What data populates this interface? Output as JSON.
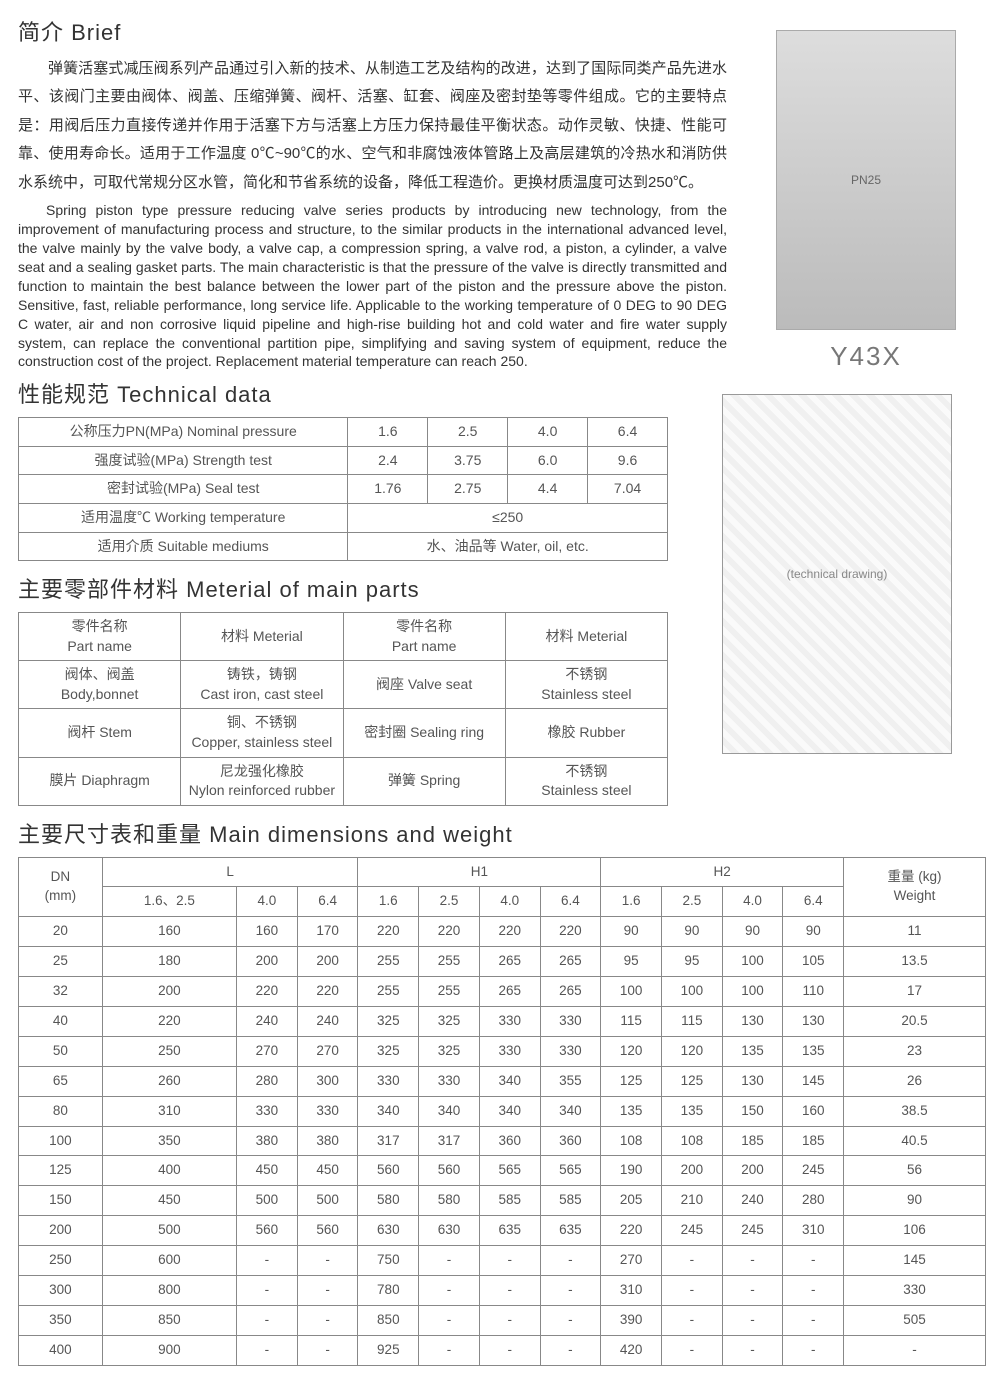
{
  "brief": {
    "heading": "简介 Brief",
    "ch": "弹簧活塞式减压阀系列产品通过引入新的技术、从制造工艺及结构的改进，达到了国际同类产品先进水平、该阀门主要由阀体、阀盖、压缩弹簧、阀杆、活塞、缸套、阀座及密封垫等零件组成。它的主要特点是：用阀后压力直接传递并作用于活塞下方与活塞上方压力保持最佳平衡状态。动作灵敏、快捷、性能可靠、使用寿命长。适用于工作温度 0℃~90℃的水、空气和非腐蚀液体管路上及高层建筑的冷热水和消防供水系统中，可取代常规分区水管，简化和节省系统的设备，降低工程造价。更换材质温度可达到250℃。",
    "en": "Spring piston type pressure reducing valve series products by introducing new technology, from the improvement of manufacturing process and structure, to the similar products in the international advanced level, the valve mainly by the valve body, a valve cap, a compression spring, a valve rod, a piston, a cylinder, a valve seat and a sealing gasket parts. The main characteristic is that the pressure of the valve is directly transmitted and function to maintain the best balance between the lower part of the piston and the pressure above the piston. Sensitive, fast, reliable performance, long service life. Applicable to the working temperature of 0 DEG to 90 DEG C water, air and non corrosive liquid pipeline and high-rise building hot and cold water and fire water supply system, can replace the conventional partition pipe, simplifying and saving system of equipment, reduce the construction cost of the project. Replacement material temperature can reach 250."
  },
  "model": "Y43X",
  "photo_placeholder": "PN25",
  "diagram_placeholder": "(technical drawing)",
  "tech": {
    "heading": "性能规范 Technical data",
    "rows": [
      {
        "label": "公称压力PN(MPa) Nominal pressure",
        "cells": [
          "1.6",
          "2.5",
          "4.0",
          "6.4"
        ]
      },
      {
        "label": "强度试验(MPa) Strength test",
        "cells": [
          "2.4",
          "3.75",
          "6.0",
          "9.6"
        ]
      },
      {
        "label": "密封试验(MPa) Seal test",
        "cells": [
          "1.76",
          "2.75",
          "4.4",
          "7.04"
        ]
      },
      {
        "label": "适用温度℃ Working temperature",
        "span": "≤250"
      },
      {
        "label": "适用介质 Suitable mediums",
        "span": "水、油品等 Water, oil, etc."
      }
    ]
  },
  "mat": {
    "heading": "主要零部件材料 Meterial of main parts",
    "header": [
      "零件名称\nPart name",
      "材料 Meterial",
      "零件名称\nPart name",
      "材料 Meterial"
    ],
    "rows": [
      [
        "阀体、阀盖\nBody,bonnet",
        "铸铁，铸钢\nCast iron, cast steel",
        "阀座 Valve seat",
        "不锈钢\nStainless steel"
      ],
      [
        "阀杆 Stem",
        "铜、不锈钢\nCopper, stainless steel",
        "密封圈 Sealing ring",
        "橡胶 Rubber"
      ],
      [
        "膜片 Diaphragm",
        "尼龙强化橡胶\nNylon reinforced rubber",
        "弹簧 Spring",
        "不锈钢\nStainless steel"
      ]
    ]
  },
  "dim": {
    "heading": "主要尺寸表和重量 Main dimensions and weight",
    "top": {
      "dn": "DN\n(mm)",
      "groups": [
        {
          "label": "L",
          "subs": [
            "1.6、2.5",
            "4.0",
            "6.4"
          ]
        },
        {
          "label": "H1",
          "subs": [
            "1.6",
            "2.5",
            "4.0",
            "6.4"
          ]
        },
        {
          "label": "H2",
          "subs": [
            "1.6",
            "2.5",
            "4.0",
            "6.4"
          ]
        }
      ],
      "weight": "重量 (kg)\nWeight"
    },
    "rows": [
      [
        "20",
        "160",
        "160",
        "170",
        "220",
        "220",
        "220",
        "220",
        "90",
        "90",
        "90",
        "90",
        "11"
      ],
      [
        "25",
        "180",
        "200",
        "200",
        "255",
        "255",
        "265",
        "265",
        "95",
        "95",
        "100",
        "105",
        "13.5"
      ],
      [
        "32",
        "200",
        "220",
        "220",
        "255",
        "255",
        "265",
        "265",
        "100",
        "100",
        "100",
        "110",
        "17"
      ],
      [
        "40",
        "220",
        "240",
        "240",
        "325",
        "325",
        "330",
        "330",
        "115",
        "115",
        "130",
        "130",
        "20.5"
      ],
      [
        "50",
        "250",
        "270",
        "270",
        "325",
        "325",
        "330",
        "330",
        "120",
        "120",
        "135",
        "135",
        "23"
      ],
      [
        "65",
        "260",
        "280",
        "300",
        "330",
        "330",
        "340",
        "355",
        "125",
        "125",
        "130",
        "145",
        "26"
      ],
      [
        "80",
        "310",
        "330",
        "330",
        "340",
        "340",
        "340",
        "340",
        "135",
        "135",
        "150",
        "160",
        "38.5"
      ],
      [
        "100",
        "350",
        "380",
        "380",
        "317",
        "317",
        "360",
        "360",
        "108",
        "108",
        "185",
        "185",
        "40.5"
      ],
      [
        "125",
        "400",
        "450",
        "450",
        "560",
        "560",
        "565",
        "565",
        "190",
        "200",
        "200",
        "245",
        "56"
      ],
      [
        "150",
        "450",
        "500",
        "500",
        "580",
        "580",
        "585",
        "585",
        "205",
        "210",
        "240",
        "280",
        "90"
      ],
      [
        "200",
        "500",
        "560",
        "560",
        "630",
        "630",
        "635",
        "635",
        "220",
        "245",
        "245",
        "310",
        "106"
      ],
      [
        "250",
        "600",
        "-",
        "-",
        "750",
        "-",
        "-",
        "-",
        "270",
        "-",
        "-",
        "-",
        "145"
      ],
      [
        "300",
        "800",
        "-",
        "-",
        "780",
        "-",
        "-",
        "-",
        "310",
        "-",
        "-",
        "-",
        "330"
      ],
      [
        "350",
        "850",
        "-",
        "-",
        "850",
        "-",
        "-",
        "-",
        "390",
        "-",
        "-",
        "-",
        "505"
      ],
      [
        "400",
        "900",
        "-",
        "-",
        "925",
        "-",
        "-",
        "-",
        "420",
        "-",
        "-",
        "-",
        "-"
      ]
    ]
  },
  "colors": {
    "border": "#888888",
    "text": "#555555",
    "heading": "#333333"
  }
}
